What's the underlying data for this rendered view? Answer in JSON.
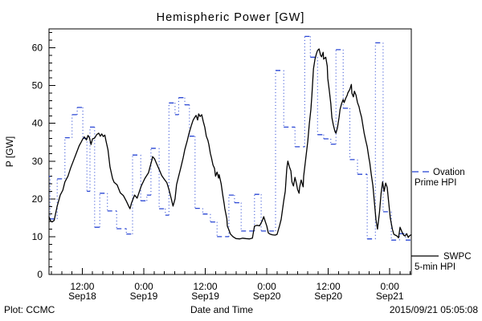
{
  "page": {
    "background": "#ffffff"
  },
  "chart": {
    "title": "Hemispheric Power [GW]",
    "xlabel": "Date and Time",
    "ylabel": "P [GW]",
    "footer_left": "Plot: CCMC",
    "footer_right": "2015/09/21 05:05:08",
    "legend": {
      "ovation_line1": "Ovation",
      "ovation_line2": "Prime HPI",
      "swpc_line1": "SWPC",
      "swpc_line2": "5-min HPI"
    },
    "colors": {
      "ovation": "#2a47d4",
      "swpc": "#000000",
      "frame": "#000000"
    }
  },
  "chart_data": {
    "type": "line",
    "title": "Hemispheric Power [GW]",
    "xlabel": "Date and Time",
    "ylabel": "P [GW]",
    "x_unit": "hours since 2015-09-18 00:00 UT",
    "xlim": [
      5.5,
      76.2
    ],
    "ylim": [
      0,
      65
    ],
    "grid": false,
    "legend_position": "right-outside",
    "x_major_ticks": [
      {
        "hour": 12,
        "time": "12:00",
        "date": "Sep18"
      },
      {
        "hour": 24,
        "time": "0:00",
        "date": "Sep19"
      },
      {
        "hour": 36,
        "time": "12:00",
        "date": "Sep19"
      },
      {
        "hour": 48,
        "time": "0:00",
        "date": "Sep20"
      },
      {
        "hour": 60,
        "time": "12:00",
        "date": "Sep20"
      },
      {
        "hour": 72,
        "time": "0:00",
        "date": "Sep21"
      }
    ],
    "x_minor_tick_hours": 2,
    "y_major_ticks": [
      0,
      10,
      20,
      30,
      40,
      50,
      60
    ],
    "y_minor_tick": 2,
    "series": [
      {
        "name": "Ovation Prime HPI",
        "color": "#2a47d4",
        "style": "stepped, dashed horizontals with dotted vertical connectors",
        "points_h_gw": [
          [
            5.5,
            26
          ],
          [
            5.7,
            14.7
          ],
          [
            7.1,
            25.3
          ],
          [
            8.6,
            36.2
          ],
          [
            10.0,
            42.3
          ],
          [
            11.0,
            44.2
          ],
          [
            12.1,
            36.0
          ],
          [
            12.9,
            22.0
          ],
          [
            13.5,
            39.0
          ],
          [
            14.4,
            12.5
          ],
          [
            15.4,
            21.5
          ],
          [
            16.9,
            16.8
          ],
          [
            18.7,
            12.1
          ],
          [
            20.6,
            10.7
          ],
          [
            21.8,
            31.6
          ],
          [
            23.4,
            19.5
          ],
          [
            24.6,
            21.0
          ],
          [
            25.4,
            33.4
          ],
          [
            27.0,
            17.4
          ],
          [
            28.2,
            15.7
          ],
          [
            28.9,
            45.4
          ],
          [
            30.1,
            42.3
          ],
          [
            30.8,
            46.8
          ],
          [
            32.0,
            44.9
          ],
          [
            32.9,
            36.6
          ],
          [
            34.0,
            17.5
          ],
          [
            35.5,
            16.0
          ],
          [
            37.0,
            13.9
          ],
          [
            38.3,
            10.0
          ],
          [
            40.6,
            21.0
          ],
          [
            41.7,
            19.0
          ],
          [
            43.0,
            11.5
          ],
          [
            45.6,
            21.2
          ],
          [
            46.9,
            11.5
          ],
          [
            49.7,
            54.0
          ],
          [
            51.3,
            39.0
          ],
          [
            53.5,
            33.8
          ],
          [
            55.4,
            63.0
          ],
          [
            56.5,
            57.5
          ],
          [
            57.9,
            37.0
          ],
          [
            59.1,
            35.9
          ],
          [
            60.5,
            34.5
          ],
          [
            61.5,
            59.5
          ],
          [
            62.9,
            44.0
          ],
          [
            64.2,
            30.4
          ],
          [
            65.7,
            26.5
          ],
          [
            67.6,
            9.4
          ],
          [
            69.2,
            61.3
          ],
          [
            70.7,
            16.6
          ],
          [
            72.3,
            9.1
          ],
          [
            73.9,
            10.8
          ],
          [
            75.1,
            9.1
          ]
        ]
      },
      {
        "name": "SWPC 5-min HPI",
        "color": "#000000",
        "style": "solid",
        "points_h_gw": [
          [
            5.5,
            15.3
          ],
          [
            5.8,
            14.2
          ],
          [
            6.1,
            13.9
          ],
          [
            6.5,
            14.3
          ],
          [
            7.1,
            18.1
          ],
          [
            7.7,
            21.0
          ],
          [
            8.2,
            22.3
          ],
          [
            8.6,
            24.5
          ],
          [
            9.2,
            26.0
          ],
          [
            9.7,
            28.1
          ],
          [
            10.3,
            30.2
          ],
          [
            10.9,
            32.3
          ],
          [
            11.4,
            34.1
          ],
          [
            11.8,
            35.1
          ],
          [
            12.1,
            35.9
          ],
          [
            12.4,
            36.4
          ],
          [
            12.8,
            35.6
          ],
          [
            13.1,
            36.8
          ],
          [
            13.4,
            36.2
          ],
          [
            13.7,
            34.4
          ],
          [
            14.0,
            35.9
          ],
          [
            14.4,
            36.1
          ],
          [
            14.8,
            37.0
          ],
          [
            15.2,
            37.4
          ],
          [
            15.5,
            36.6
          ],
          [
            15.8,
            37.2
          ],
          [
            16.1,
            36.5
          ],
          [
            16.4,
            36.9
          ],
          [
            16.6,
            35.5
          ],
          [
            17.0,
            33.0
          ],
          [
            17.4,
            28.5
          ],
          [
            17.9,
            25.4
          ],
          [
            18.2,
            24.4
          ],
          [
            18.8,
            23.7
          ],
          [
            19.4,
            21.6
          ],
          [
            20.0,
            20.9
          ],
          [
            20.6,
            19.4
          ],
          [
            21.0,
            18.2
          ],
          [
            21.3,
            17.4
          ],
          [
            21.6,
            18.9
          ],
          [
            22.2,
            21.0
          ],
          [
            22.7,
            20.2
          ],
          [
            23.5,
            23.4
          ],
          [
            24.2,
            25.4
          ],
          [
            24.9,
            26.9
          ],
          [
            25.3,
            28.9
          ],
          [
            25.6,
            30.4
          ],
          [
            25.7,
            31.2
          ],
          [
            26.1,
            30.6
          ],
          [
            26.5,
            29.3
          ],
          [
            27.0,
            27.8
          ],
          [
            27.5,
            26.2
          ],
          [
            28.0,
            25.2
          ],
          [
            28.5,
            24.3
          ],
          [
            28.9,
            22.5
          ],
          [
            29.2,
            20.9
          ],
          [
            29.7,
            18.1
          ],
          [
            30.1,
            20.0
          ],
          [
            30.4,
            23.8
          ],
          [
            30.9,
            26.5
          ],
          [
            31.2,
            28.1
          ],
          [
            31.7,
            31.0
          ],
          [
            32.0,
            33.0
          ],
          [
            32.5,
            35.5
          ],
          [
            32.8,
            37.2
          ],
          [
            33.3,
            39.5
          ],
          [
            33.6,
            40.8
          ],
          [
            33.9,
            41.5
          ],
          [
            34.2,
            42.1
          ],
          [
            34.5,
            40.9
          ],
          [
            34.7,
            42.5
          ],
          [
            35.0,
            41.8
          ],
          [
            35.3,
            42.3
          ],
          [
            35.6,
            40.5
          ],
          [
            35.9,
            39.0
          ],
          [
            36.2,
            36.6
          ],
          [
            36.5,
            35.5
          ],
          [
            36.7,
            34.4
          ],
          [
            37.0,
            32.0
          ],
          [
            37.2,
            30.9
          ],
          [
            37.5,
            29.0
          ],
          [
            37.8,
            28.1
          ],
          [
            38.0,
            26.0
          ],
          [
            38.3,
            27.1
          ],
          [
            38.6,
            25.5
          ],
          [
            38.7,
            26.4
          ],
          [
            39.1,
            24.0
          ],
          [
            39.4,
            21.0
          ],
          [
            39.7,
            18.5
          ],
          [
            39.8,
            17.5
          ],
          [
            40.2,
            14.7
          ],
          [
            40.3,
            12.8
          ],
          [
            40.6,
            11.8
          ],
          [
            40.9,
            10.7
          ],
          [
            41.4,
            10.0
          ],
          [
            42.0,
            9.5
          ],
          [
            42.7,
            9.4
          ],
          [
            43.3,
            9.6
          ],
          [
            43.9,
            9.5
          ],
          [
            44.6,
            9.4
          ],
          [
            45.2,
            9.6
          ],
          [
            45.6,
            12.8
          ],
          [
            46.1,
            13.0
          ],
          [
            46.6,
            12.9
          ],
          [
            47.1,
            14.2
          ],
          [
            47.4,
            15.3
          ],
          [
            47.7,
            14.0
          ],
          [
            48.0,
            12.8
          ],
          [
            48.3,
            11.0
          ],
          [
            48.6,
            10.7
          ],
          [
            49.1,
            10.5
          ],
          [
            49.6,
            10.4
          ],
          [
            50.0,
            10.6
          ],
          [
            50.5,
            13.0
          ],
          [
            50.8,
            14.6
          ],
          [
            51.3,
            19.5
          ],
          [
            51.6,
            22.0
          ],
          [
            51.9,
            28.0
          ],
          [
            52.1,
            30.0
          ],
          [
            52.4,
            28.5
          ],
          [
            52.7,
            27.4
          ],
          [
            52.9,
            24.5
          ],
          [
            53.2,
            23.4
          ],
          [
            53.5,
            25.7
          ],
          [
            53.8,
            24.0
          ],
          [
            54.0,
            22.5
          ],
          [
            54.3,
            21.5
          ],
          [
            54.4,
            23.0
          ],
          [
            54.7,
            25.0
          ],
          [
            55.1,
            23.2
          ],
          [
            55.2,
            26.0
          ],
          [
            55.5,
            29.6
          ],
          [
            55.8,
            33.0
          ],
          [
            56.0,
            35.2
          ],
          [
            56.3,
            40.0
          ],
          [
            56.6,
            43.7
          ],
          [
            56.8,
            47.3
          ],
          [
            57.1,
            54.4
          ],
          [
            57.4,
            57.0
          ],
          [
            57.7,
            58.5
          ],
          [
            57.9,
            59.3
          ],
          [
            58.2,
            59.7
          ],
          [
            58.5,
            58.0
          ],
          [
            58.7,
            57.6
          ],
          [
            59.0,
            58.8
          ],
          [
            59.1,
            57.0
          ],
          [
            59.5,
            57.5
          ],
          [
            59.8,
            55.1
          ],
          [
            59.9,
            51.9
          ],
          [
            60.2,
            48.7
          ],
          [
            60.5,
            45.2
          ],
          [
            60.7,
            41.6
          ],
          [
            61.0,
            39.5
          ],
          [
            61.3,
            37.8
          ],
          [
            61.5,
            37.4
          ],
          [
            61.8,
            38.9
          ],
          [
            62.1,
            41.6
          ],
          [
            62.3,
            43.7
          ],
          [
            62.6,
            45.2
          ],
          [
            62.9,
            46.3
          ],
          [
            63.1,
            45.5
          ],
          [
            63.4,
            46.6
          ],
          [
            63.7,
            47.5
          ],
          [
            63.8,
            48.0
          ],
          [
            64.2,
            49.0
          ],
          [
            64.5,
            50.3
          ],
          [
            64.6,
            48.0
          ],
          [
            64.9,
            47.0
          ],
          [
            65.1,
            48.5
          ],
          [
            65.4,
            47.5
          ],
          [
            65.7,
            45.5
          ],
          [
            66.0,
            44.4
          ],
          [
            66.2,
            43.1
          ],
          [
            66.5,
            41.6
          ],
          [
            67.0,
            37.4
          ],
          [
            67.3,
            35.5
          ],
          [
            67.6,
            33.8
          ],
          [
            67.9,
            31.0
          ],
          [
            68.1,
            29.6
          ],
          [
            68.4,
            26.4
          ],
          [
            68.7,
            23.5
          ],
          [
            69.0,
            19.0
          ],
          [
            69.3,
            14.5
          ],
          [
            69.6,
            12.0
          ],
          [
            70.0,
            16.5
          ],
          [
            70.3,
            21.5
          ],
          [
            70.6,
            24.5
          ],
          [
            70.9,
            22.0
          ],
          [
            71.2,
            24.2
          ],
          [
            71.5,
            23.0
          ],
          [
            71.8,
            19.0
          ],
          [
            72.1,
            15.0
          ],
          [
            72.5,
            12.0
          ],
          [
            72.8,
            10.6
          ],
          [
            73.1,
            10.4
          ],
          [
            73.4,
            10.2
          ],
          [
            73.7,
            9.7
          ],
          [
            74.0,
            12.5
          ],
          [
            74.4,
            11.2
          ],
          [
            74.7,
            10.4
          ],
          [
            75.0,
            10.2
          ],
          [
            75.3,
            10.8
          ],
          [
            75.6,
            9.8
          ],
          [
            75.9,
            10.3
          ],
          [
            76.2,
            10.5
          ]
        ]
      }
    ]
  }
}
